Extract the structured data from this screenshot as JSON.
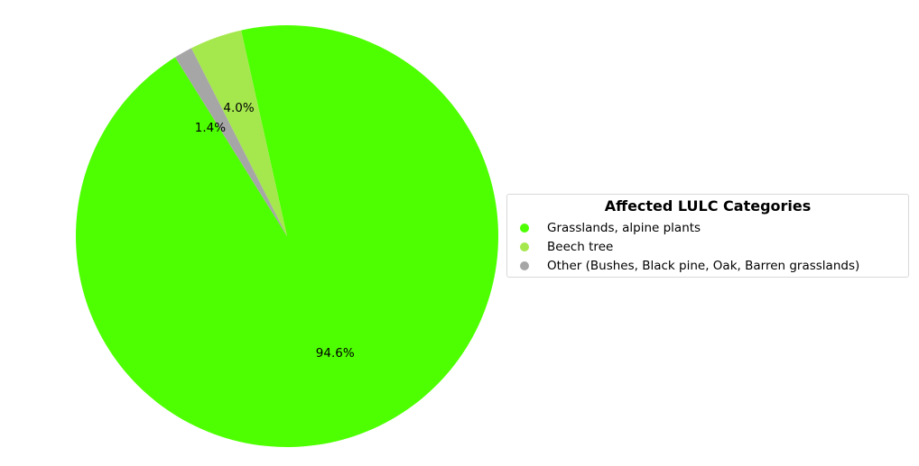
{
  "chart_data": {
    "type": "pie",
    "title": "",
    "legend_title": "Affected LULC Categories",
    "legend_position": "right",
    "start_angle_deg": 122,
    "direction": "counterclockwise",
    "slices": [
      {
        "label": "Grasslands, alpine plants",
        "value": 94.6,
        "pct_label": "94.6%",
        "color": "#4dff00"
      },
      {
        "label": "Beech tree",
        "value": 4.0,
        "pct_label": "4.0%",
        "color": "#a5e84d"
      },
      {
        "label": "Other (Bushes, Black pine, Oak, Barren grasslands)",
        "value": 1.4,
        "pct_label": "1.4%",
        "color": "#a6a6a6"
      }
    ]
  }
}
